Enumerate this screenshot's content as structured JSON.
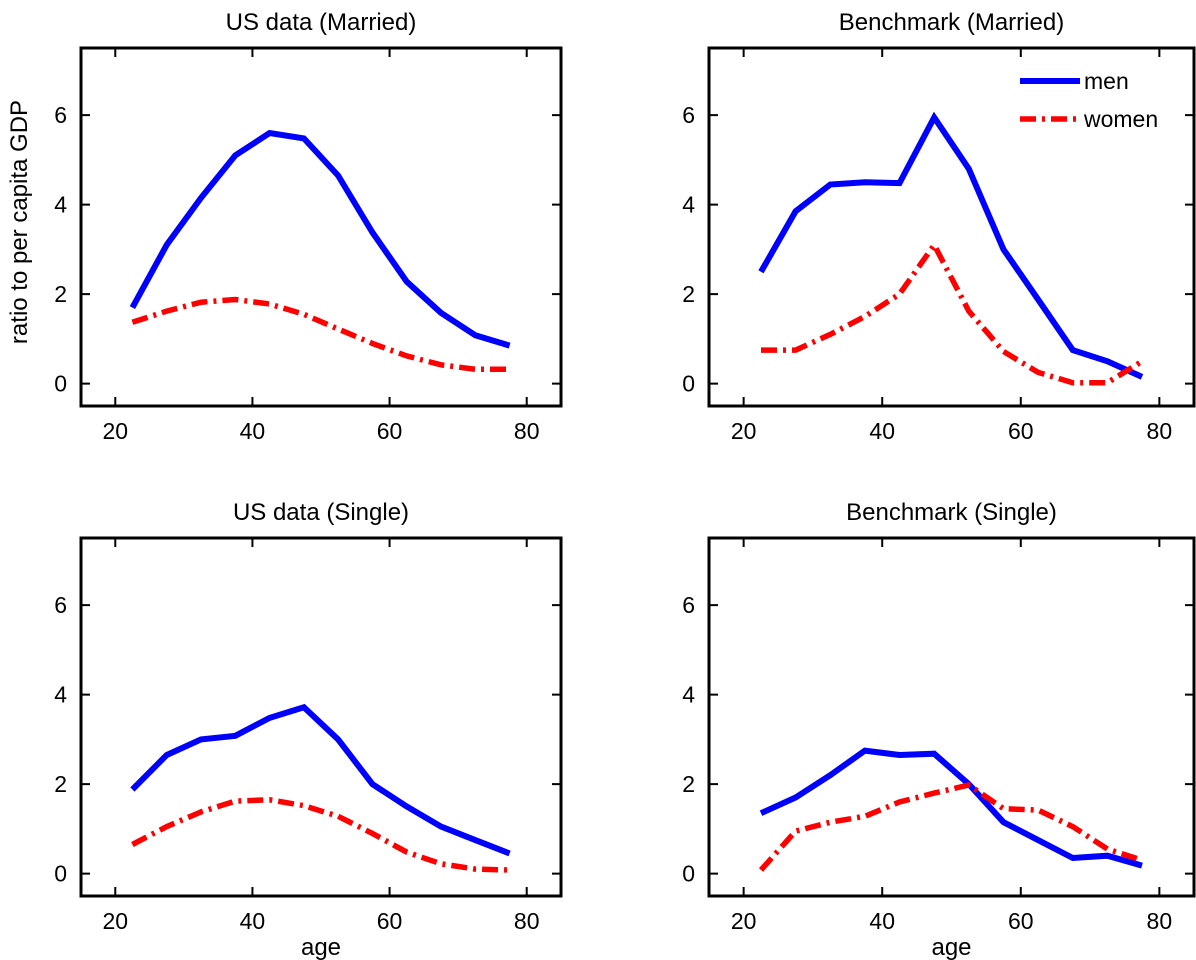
{
  "chart_data": [
    {
      "type": "line",
      "title": "US data (Married)",
      "xlabel": "",
      "ylabel": "ratio to per capita GDP",
      "xlim": [
        15,
        85
      ],
      "ylim": [
        -0.5,
        7.5
      ],
      "xticks": [
        20,
        40,
        60,
        80
      ],
      "yticks": [
        0,
        2,
        4,
        6
      ],
      "grid": false,
      "x": [
        22.5,
        27.5,
        32.5,
        37.5,
        42.5,
        47.5,
        52.5,
        57.5,
        62.5,
        67.5,
        72.5,
        77.5
      ],
      "series": [
        {
          "name": "men",
          "color": "#0000ff",
          "style": "solid",
          "values": [
            1.7,
            3.1,
            4.15,
            5.1,
            5.6,
            5.48,
            4.65,
            3.38,
            2.28,
            1.58,
            1.08,
            0.85
          ]
        },
        {
          "name": "women",
          "color": "#ff0000",
          "style": "dashdot",
          "values": [
            1.37,
            1.62,
            1.82,
            1.88,
            1.78,
            1.55,
            1.22,
            0.9,
            0.62,
            0.42,
            0.32,
            0.32
          ]
        }
      ]
    },
    {
      "type": "line",
      "title": "Benchmark (Married)",
      "xlabel": "",
      "ylabel": "",
      "xlim": [
        15,
        85
      ],
      "ylim": [
        -0.5,
        7.5
      ],
      "xticks": [
        20,
        40,
        60,
        80
      ],
      "yticks": [
        0,
        2,
        4,
        6
      ],
      "grid": false,
      "legend": {
        "position": "top-right",
        "entries": [
          "men",
          "women"
        ]
      },
      "x": [
        22.5,
        27.5,
        32.5,
        37.5,
        42.5,
        47.5,
        52.5,
        57.5,
        62.5,
        67.5,
        72.5,
        77.5
      ],
      "series": [
        {
          "name": "men",
          "color": "#0000ff",
          "style": "solid",
          "values": [
            2.5,
            3.85,
            4.45,
            4.5,
            4.48,
            5.95,
            4.8,
            3.0,
            1.88,
            0.75,
            0.5,
            0.15
          ]
        },
        {
          "name": "women",
          "color": "#ff0000",
          "style": "dashdot",
          "values": [
            0.75,
            0.75,
            1.1,
            1.5,
            2.0,
            3.1,
            1.62,
            0.72,
            0.25,
            0.02,
            0.02,
            0.5
          ]
        }
      ]
    },
    {
      "type": "line",
      "title": "US data (Single)",
      "xlabel": "age",
      "ylabel": "",
      "xlim": [
        15,
        85
      ],
      "ylim": [
        -0.5,
        7.5
      ],
      "xticks": [
        20,
        40,
        60,
        80
      ],
      "yticks": [
        0,
        2,
        4,
        6
      ],
      "grid": false,
      "x": [
        22.5,
        27.5,
        32.5,
        37.5,
        42.5,
        47.5,
        52.5,
        57.5,
        62.5,
        67.5,
        72.5,
        77.5
      ],
      "series": [
        {
          "name": "men",
          "color": "#0000ff",
          "style": "solid",
          "values": [
            1.88,
            2.65,
            3.0,
            3.08,
            3.48,
            3.72,
            3.0,
            2.0,
            1.5,
            1.05,
            0.75,
            0.45
          ]
        },
        {
          "name": "women",
          "color": "#ff0000",
          "style": "dashdot",
          "values": [
            0.65,
            1.05,
            1.38,
            1.62,
            1.65,
            1.52,
            1.28,
            0.9,
            0.48,
            0.22,
            0.1,
            0.08
          ]
        }
      ]
    },
    {
      "type": "line",
      "title": "Benchmark (Single)",
      "xlabel": "age",
      "ylabel": "",
      "xlim": [
        15,
        85
      ],
      "ylim": [
        -0.5,
        7.5
      ],
      "xticks": [
        20,
        40,
        60,
        80
      ],
      "yticks": [
        0,
        2,
        4,
        6
      ],
      "grid": false,
      "x": [
        22.5,
        27.5,
        32.5,
        37.5,
        42.5,
        47.5,
        52.5,
        57.5,
        62.5,
        67.5,
        72.5,
        77.5
      ],
      "series": [
        {
          "name": "men",
          "color": "#0000ff",
          "style": "solid",
          "values": [
            1.35,
            1.7,
            2.2,
            2.75,
            2.65,
            2.68,
            2.0,
            1.15,
            0.75,
            0.35,
            0.4,
            0.18
          ]
        },
        {
          "name": "women",
          "color": "#ff0000",
          "style": "dashdot",
          "values": [
            0.08,
            0.95,
            1.15,
            1.28,
            1.6,
            1.8,
            1.98,
            1.45,
            1.42,
            1.05,
            0.55,
            0.3
          ]
        }
      ]
    }
  ]
}
